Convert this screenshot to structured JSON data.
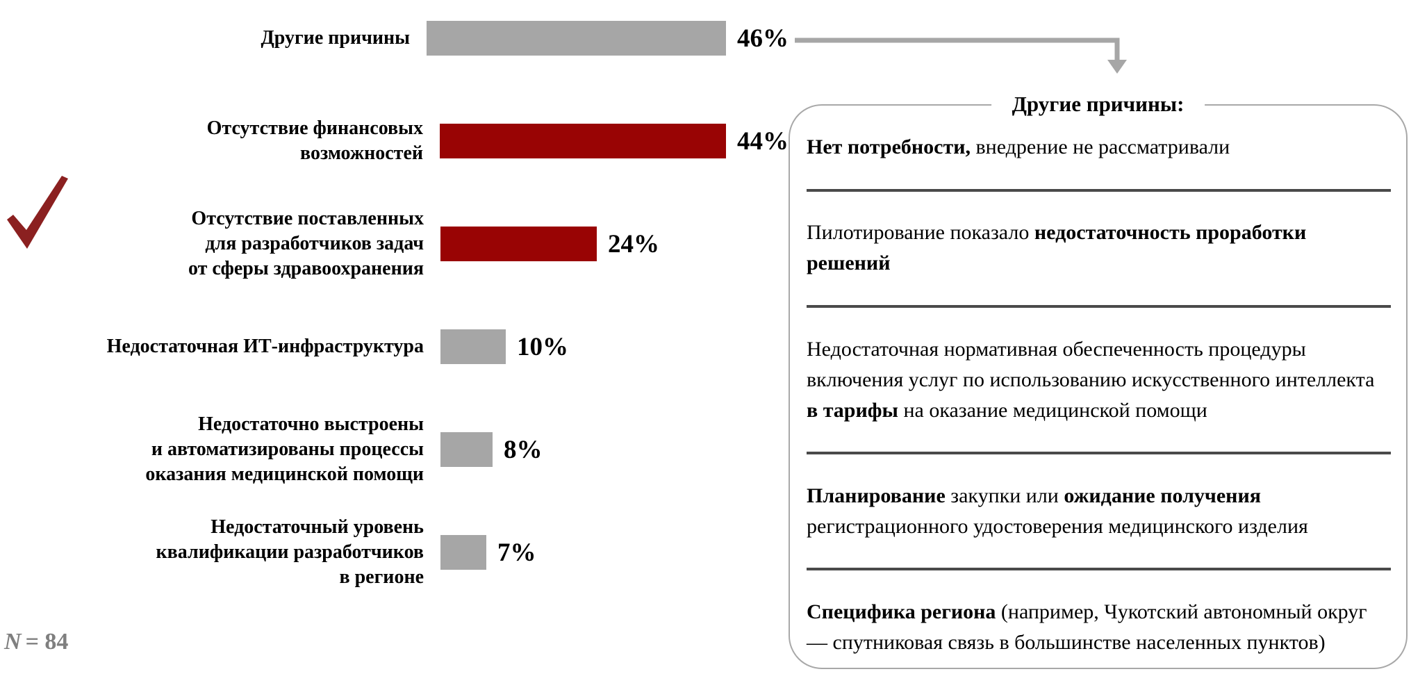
{
  "chart_data": {
    "type": "bar",
    "orientation": "horizontal",
    "unit": "%",
    "categories": [
      "Другие причины",
      "Отсутствие финансовых\nвозможностей",
      "Отсутствие поставленных\nдля разработчиков задач\nот сферы здравоохранения",
      "Недостаточная ИТ-инфраструктура",
      "Недостаточно выстроены\nи автоматизированы процессы\nоказания медицинской помощи",
      "Недостаточный уровень\nквалификации разработчиков\nв регионе"
    ],
    "values": [
      46,
      44,
      24,
      10,
      8,
      7
    ],
    "value_labels": [
      "46%",
      "44%",
      "24%",
      "10%",
      "8%",
      "7%"
    ],
    "bar_colors": [
      "#a6a6a6",
      "#990404",
      "#990404",
      "#a6a6a6",
      "#a6a6a6",
      "#a6a6a6"
    ],
    "highlighted_category_index": 2,
    "xlim": [
      0,
      50
    ],
    "grid": false,
    "legend": false,
    "sample_size": 84,
    "sample_size_label": "N = 84"
  },
  "footnote": {
    "n_italic": "N",
    "rest": "= 84"
  },
  "panel": {
    "title": "Другие причины:",
    "items": [
      {
        "segments": [
          {
            "text": "Нет потребности,",
            "bold": true
          },
          {
            "text": " внедрение не рассматривали",
            "bold": false
          }
        ]
      },
      {
        "segments": [
          {
            "text": "Пилотирование показало ",
            "bold": false
          },
          {
            "text": "недостаточность проработки решений",
            "bold": true
          }
        ]
      },
      {
        "segments": [
          {
            "text": "Недостаточная нормативная обеспеченность процедуры включения услуг по использованию искусственного интеллекта ",
            "bold": false
          },
          {
            "text": "в тарифы",
            "bold": true
          },
          {
            "text": " на оказание медицинской помощи",
            "bold": false
          }
        ]
      },
      {
        "segments": [
          {
            "text": "Планирование",
            "bold": true
          },
          {
            "text": " закупки или ",
            "bold": false
          },
          {
            "text": "ожидание получения",
            "bold": true
          },
          {
            "text": " регистрационного удостоверения медицинского изделия",
            "bold": false
          }
        ]
      },
      {
        "segments": [
          {
            "text": "Специфика региона",
            "bold": true
          },
          {
            "text": " (например, Чукотский автономный округ — спутниковая связь в большинстве населенных пунктов)",
            "bold": false
          }
        ]
      }
    ]
  },
  "icons": {
    "checkmark": "check-icon",
    "connector": "arrow-down-connector-icon"
  },
  "colors": {
    "bar_gray": "#a6a6a6",
    "bar_red": "#990404",
    "checkmark_red": "#8b2020",
    "separator_dark": "#4a4a4a",
    "panel_border_gray": "#a8a8a8",
    "arrow_gray": "#a6a6a6",
    "footnote_gray": "#7f7f7f"
  }
}
